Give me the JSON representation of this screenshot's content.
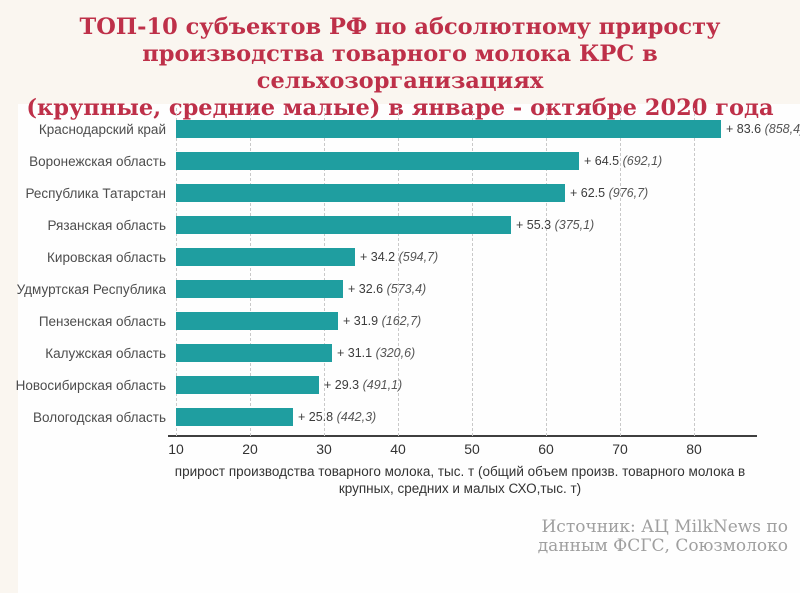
{
  "title": {
    "lines": [
      "ТОП-10 субъектов РФ по абсолютному приросту",
      "производства товарного молока КРС в сельхозорганизациях",
      "(крупные, средние малые) в январе - октябре 2020 года"
    ]
  },
  "chart_data": {
    "type": "bar",
    "orientation": "horizontal",
    "title": "ТОП-10 субъектов РФ по абсолютному приросту производства товарного молока КРС в сельхозорганизациях (крупные, средние малые) в январе - октябре 2020 года",
    "categories": [
      "Краснодарский край",
      "Воронежская область",
      "Республика Татарстан",
      "Рязанская область",
      "Кировская область",
      "Удмуртская Республика",
      "Пензенская область",
      "Калужская область",
      "Новосибирская область",
      "Вологодская область"
    ],
    "values": [
      83.6,
      64.5,
      62.5,
      55.3,
      34.2,
      32.6,
      31.9,
      31.1,
      29.3,
      25.8
    ],
    "totals": [
      "858,4",
      "692,1",
      "976,7",
      "375,1",
      "594,7",
      "573,4",
      "162,7",
      "320,6",
      "491,1",
      "442,3"
    ],
    "value_prefix": "+ ",
    "x_ticks": [
      10,
      20,
      30,
      40,
      50,
      60,
      70,
      80
    ],
    "xlim": [
      10,
      88
    ],
    "grid": "vertical-dashed",
    "xlabel": "прирост производства товарного молока, тыс. т (общий объем произв. товарного молока в крупных, средних и малых СХО,тыс. т)",
    "xlabel_lines": [
      "прирост производства товарного молока, тыс. т (общий объем произв. товарного молока в",
      "крупных, средних и малых СХО,тыс. т)"
    ]
  },
  "source": {
    "lines": [
      "Источник: АЦ MilkNews по",
      "данным ФСГС, Союзмолоко"
    ]
  },
  "colors": {
    "bar": "#1f9ea0",
    "title": "#be3049",
    "label_text": "#4d4d4d",
    "value_text": "#3c3c3c",
    "gridline": "#c9c9c9",
    "axis_line": "#3f3f3f",
    "background": "#faf6f0",
    "card": "#fefefe",
    "source_text": "#9f9f9f"
  }
}
